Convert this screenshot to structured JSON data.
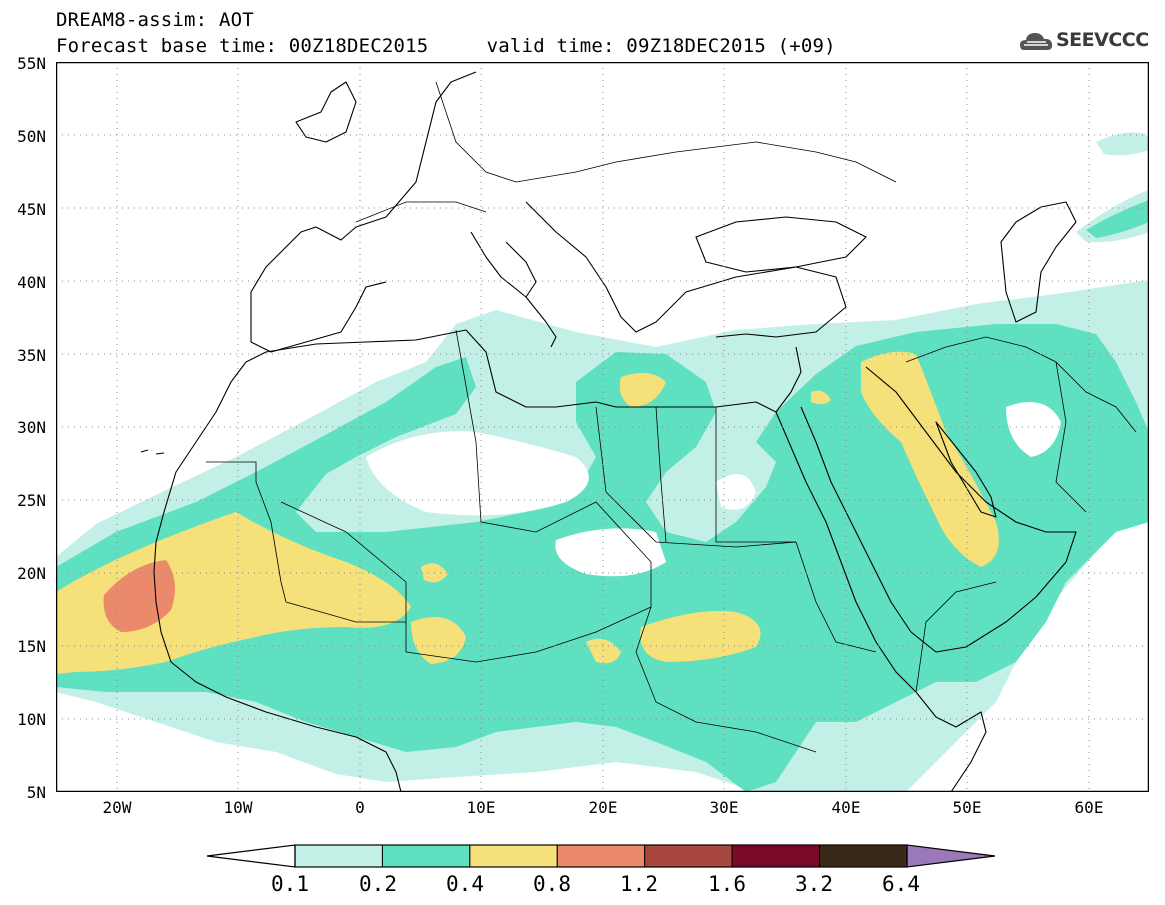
{
  "header": {
    "title_line1": "DREAM8-assim: AOT",
    "title_line2": "Forecast base time: 00Z18DEC2015     valid time: 09Z18DEC2015 (+09)"
  },
  "logo": {
    "text": "SEEVCCC",
    "icon": "cloud-icon"
  },
  "map": {
    "lat_labels": [
      "55N",
      "50N",
      "45N",
      "40N",
      "35N",
      "30N",
      "25N",
      "20N",
      "15N",
      "10N",
      "5N"
    ],
    "lon_labels": [
      "20W",
      "10W",
      "0",
      "10E",
      "20E",
      "30E",
      "40E",
      "50E",
      "60E"
    ],
    "extent": {
      "lon_min": -25,
      "lon_max": 65,
      "lat_min": 5,
      "lat_max": 55
    },
    "grid": "dotted"
  },
  "colorbar": {
    "labels": [
      "0.1",
      "0.2",
      "0.4",
      "0.8",
      "1.2",
      "1.6",
      "3.2",
      "6.4"
    ],
    "colors": [
      "#ffffff",
      "#c3f0e6",
      "#5fe0c0",
      "#f5e07a",
      "#eb8a6a",
      "#a8473e",
      "#7a0a28",
      "#3a2818",
      "#9b78b8"
    ]
  }
}
